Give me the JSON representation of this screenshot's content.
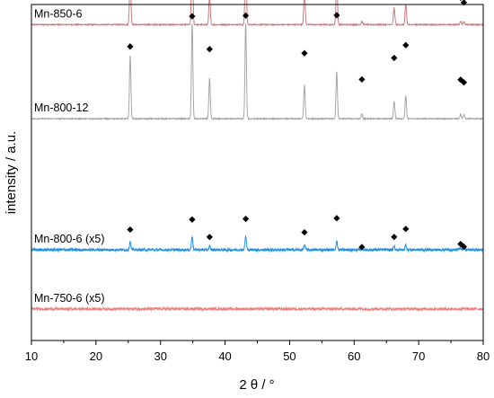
{
  "chart_data": {
    "type": "line",
    "xlabel": "2 θ / °",
    "ylabel": "intensity / a.u.",
    "xlim": [
      10,
      80
    ],
    "x_ticks": [
      "10",
      "20",
      "30",
      "40",
      "50",
      "60",
      "70",
      "80"
    ],
    "y_ticks_shown": false,
    "grid": false,
    "legend": "none",
    "marker_symbol": "◆",
    "peak_positions": [
      25.3,
      34.9,
      37.6,
      43.2,
      52.3,
      57.3,
      61.2,
      66.2,
      68.0,
      76.5,
      77.0
    ],
    "series": [
      {
        "name": "Mn-850-6",
        "color": "#c97c7c",
        "baseline": 0.06,
        "noise": 0.0015,
        "peak_heights": [
          0.145,
          0.235,
          0.09,
          0.235,
          0.1,
          0.145,
          0.01,
          0.05,
          0.06,
          0.01,
          0.01
        ],
        "marker_heights": [
          0.164,
          0.254,
          0.135,
          0.256,
          0.148,
          0.258,
          0.088,
          0.128,
          0.16,
          0.08,
          0.066
        ]
      },
      {
        "name": "Mn-800-12",
        "color": "#a6a6a6",
        "baseline": 0.34,
        "noise": 0.0015,
        "peak_heights": [
          0.19,
          0.285,
          0.12,
          0.285,
          0.1,
          0.14,
          0.014,
          0.052,
          0.068,
          0.012,
          0.012
        ],
        "marker_heights": [
          0.215,
          0.305,
          0.207,
          0.307,
          0.195,
          0.308,
          0.117,
          0.181,
          0.219,
          0.116,
          0.108
        ]
      },
      {
        "name": "Mn-800-6 (x5)",
        "color": "#1e90e6",
        "baseline": 0.73,
        "noise": 0.004,
        "peak_heights": [
          0.025,
          0.04,
          0.01,
          0.04,
          0.014,
          0.025,
          0.006,
          0.01,
          0.015,
          0.006,
          0.006
        ],
        "marker_heights": [
          0.06,
          0.09,
          0.038,
          0.092,
          0.052,
          0.094,
          0.008,
          0.038,
          0.062,
          0.017,
          0.009
        ]
      },
      {
        "name": "Mn-750-6 (x5)",
        "color": "#ec8080",
        "baseline": 0.906,
        "noise": 0.004,
        "peak_heights": [],
        "marker_heights": []
      }
    ]
  }
}
